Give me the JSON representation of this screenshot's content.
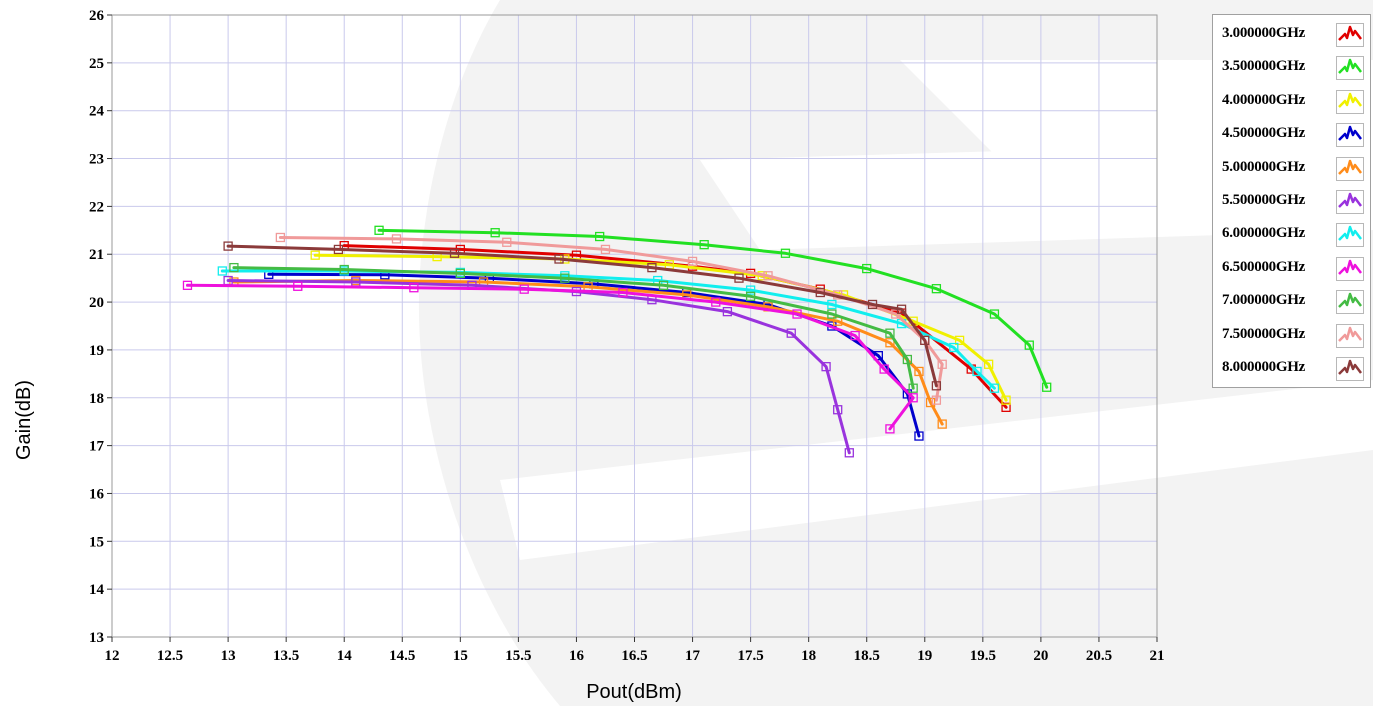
{
  "chart_data": {
    "type": "line",
    "title": "",
    "xlabel": "Pout(dBm)",
    "ylabel": "Gain(dB)",
    "xlim": [
      12,
      21
    ],
    "ylim": [
      13,
      26
    ],
    "x_ticks": [
      "12",
      "12.5",
      "13",
      "13.5",
      "14",
      "14.5",
      "15",
      "15.5",
      "16",
      "16.5",
      "17",
      "17.5",
      "18",
      "18.5",
      "19",
      "19.5",
      "20",
      "20.5",
      "21"
    ],
    "y_ticks": [
      "13",
      "14",
      "15",
      "16",
      "17",
      "18",
      "19",
      "20",
      "21",
      "22",
      "23",
      "24",
      "25",
      "26"
    ],
    "grid": true,
    "legend_position": "right",
    "marker": "square",
    "series": [
      {
        "name": "3.000000GHz",
        "color": "#e00000",
        "x": [
          14.0,
          15.0,
          16.0,
          17.0,
          17.5,
          18.1,
          18.8,
          19.4,
          19.7
        ],
        "y": [
          21.18,
          21.1,
          20.98,
          20.75,
          20.6,
          20.27,
          19.77,
          18.6,
          17.8
        ]
      },
      {
        "name": "3.500000GHz",
        "color": "#22e022",
        "x": [
          14.3,
          15.3,
          16.2,
          17.1,
          17.8,
          18.5,
          19.1,
          19.6,
          19.9,
          20.05
        ],
        "y": [
          21.5,
          21.45,
          21.37,
          21.2,
          21.02,
          20.7,
          20.28,
          19.75,
          19.1,
          18.22
        ]
      },
      {
        "name": "4.000000GHz",
        "color": "#f0f000",
        "x": [
          13.75,
          14.8,
          15.9,
          16.8,
          17.6,
          18.3,
          18.9,
          19.3,
          19.55,
          19.7
        ],
        "y": [
          20.98,
          20.95,
          20.9,
          20.78,
          20.55,
          20.15,
          19.6,
          19.2,
          18.7,
          17.95
        ]
      },
      {
        "name": "4.500000GHz",
        "color": "#0000cc",
        "x": [
          13.35,
          14.35,
          15.25,
          16.15,
          16.95,
          17.65,
          18.2,
          18.6,
          18.85,
          18.95
        ],
        "y": [
          20.58,
          20.57,
          20.5,
          20.38,
          20.2,
          19.95,
          19.5,
          18.88,
          18.08,
          17.2
        ]
      },
      {
        "name": "5.000000GHz",
        "color": "#ff8c1a",
        "x": [
          13.05,
          14.1,
          15.2,
          16.1,
          16.95,
          17.65,
          18.25,
          18.7,
          18.95,
          19.05,
          19.15
        ],
        "y": [
          20.42,
          20.45,
          20.42,
          20.32,
          20.15,
          19.9,
          19.6,
          19.15,
          18.55,
          17.9,
          17.45
        ]
      },
      {
        "name": "5.500000GHz",
        "color": "#9933dd",
        "x": [
          13.0,
          14.1,
          15.1,
          16.0,
          16.65,
          17.3,
          17.85,
          18.15,
          18.25,
          18.35
        ],
        "y": [
          20.45,
          20.42,
          20.35,
          20.22,
          20.05,
          19.8,
          19.35,
          18.65,
          17.75,
          16.85
        ]
      },
      {
        "name": "6.000000GHz",
        "color": "#11eeee",
        "x": [
          12.95,
          14.0,
          15.0,
          15.9,
          16.7,
          17.5,
          18.2,
          18.8,
          19.25,
          19.45,
          19.6
        ],
        "y": [
          20.65,
          20.65,
          20.62,
          20.55,
          20.45,
          20.25,
          19.95,
          19.55,
          19.05,
          18.55,
          18.2
        ]
      },
      {
        "name": "6.500000GHz",
        "color": "#ee11dd",
        "x": [
          12.65,
          13.6,
          14.6,
          15.55,
          16.4,
          17.2,
          17.9,
          18.4,
          18.65,
          18.9,
          18.7
        ],
        "y": [
          20.35,
          20.33,
          20.3,
          20.27,
          20.2,
          20.0,
          19.75,
          19.3,
          18.6,
          18.0,
          17.35
        ]
      },
      {
        "name": "7.000000GHz",
        "color": "#44bb44",
        "x": [
          13.05,
          14.0,
          15.0,
          15.9,
          16.75,
          17.5,
          18.2,
          18.7,
          18.85,
          18.9
        ],
        "y": [
          20.72,
          20.68,
          20.6,
          20.5,
          20.35,
          20.12,
          19.75,
          19.35,
          18.8,
          18.2
        ]
      },
      {
        "name": "7.500000GHz",
        "color": "#f09a9a",
        "x": [
          13.45,
          14.45,
          15.4,
          16.25,
          17.0,
          17.65,
          18.25,
          18.75,
          19.0,
          19.15,
          19.1
        ],
        "y": [
          21.35,
          21.32,
          21.25,
          21.1,
          20.85,
          20.55,
          20.15,
          19.75,
          19.2,
          18.7,
          17.95
        ]
      },
      {
        "name": "8.000000GHz",
        "color": "#8b3a3a",
        "x": [
          13.0,
          13.95,
          14.95,
          15.85,
          16.65,
          17.4,
          18.1,
          18.55,
          18.8,
          19.0,
          19.1
        ],
        "y": [
          21.17,
          21.1,
          21.02,
          20.9,
          20.72,
          20.5,
          20.2,
          19.95,
          19.85,
          19.2,
          18.25
        ]
      }
    ]
  },
  "watermark_color": "#ededed"
}
